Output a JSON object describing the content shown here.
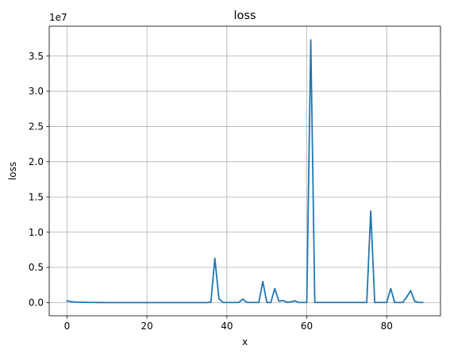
{
  "chart_data": {
    "type": "line",
    "title": "loss",
    "xlabel": "x",
    "ylabel": "loss",
    "offset_text": "1e7",
    "xlim": [
      -4.45,
      93.45
    ],
    "ylim": [
      -1870000,
      39240000
    ],
    "xticks": [
      0,
      20,
      40,
      60,
      80
    ],
    "yticks": [
      0,
      5000000,
      10000000,
      15000000,
      20000000,
      25000000,
      30000000,
      35000000
    ],
    "ytick_labels": [
      "0.0",
      "0.5",
      "1.0",
      "1.5",
      "2.0",
      "2.5",
      "3.0",
      "3.5"
    ],
    "grid": true,
    "series": [
      {
        "color": "#1f77b4",
        "x": [
          0,
          1,
          2,
          3,
          4,
          5,
          6,
          7,
          8,
          9,
          10,
          11,
          12,
          13,
          14,
          15,
          16,
          17,
          18,
          19,
          20,
          21,
          22,
          23,
          24,
          25,
          26,
          27,
          28,
          29,
          30,
          31,
          32,
          33,
          34,
          35,
          36,
          37,
          38,
          39,
          40,
          41,
          42,
          43,
          44,
          45,
          46,
          47,
          48,
          49,
          50,
          51,
          52,
          53,
          54,
          55,
          56,
          57,
          58,
          59,
          60,
          61,
          62,
          63,
          64,
          65,
          66,
          67,
          68,
          69,
          70,
          71,
          72,
          73,
          74,
          75,
          76,
          77,
          78,
          79,
          80,
          81,
          82,
          83,
          84,
          85,
          86,
          87,
          88,
          89
        ],
        "values": [
          250000,
          120000,
          80000,
          60000,
          40000,
          30000,
          20000,
          15000,
          10000,
          8000,
          5000,
          5000,
          5000,
          5000,
          5000,
          5000,
          5000,
          5000,
          5000,
          5000,
          5000,
          5000,
          5000,
          5000,
          5000,
          5000,
          5000,
          5000,
          5000,
          5000,
          5000,
          5000,
          5000,
          5000,
          5000,
          5000,
          50000,
          6300000,
          600000,
          20000,
          20000,
          20000,
          20000,
          20000,
          500000,
          20000,
          20000,
          20000,
          20000,
          3000000,
          20000,
          20000,
          2000000,
          200000,
          300000,
          50000,
          100000,
          250000,
          20000,
          20000,
          20000,
          37300000,
          20000,
          20000,
          20000,
          20000,
          20000,
          20000,
          20000,
          20000,
          20000,
          20000,
          20000,
          20000,
          20000,
          20000,
          13000000,
          20000,
          20000,
          20000,
          20000,
          2000000,
          20000,
          20000,
          20000,
          800000,
          1700000,
          200000,
          20000,
          20000
        ]
      }
    ]
  }
}
